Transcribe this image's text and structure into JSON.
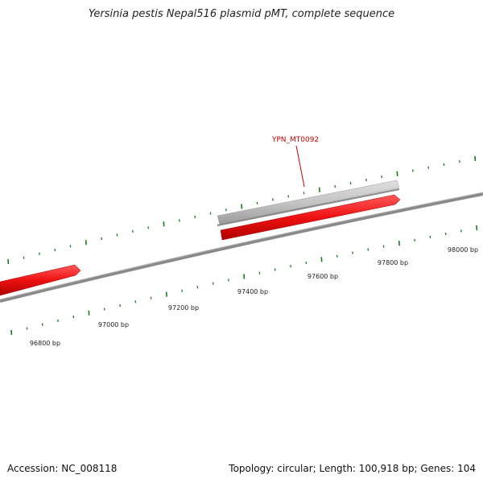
{
  "title": "Yersinia pestis Nepal516 plasmid pMT, complete sequence",
  "footer": {
    "accession": "Accession: NC_008118",
    "info": "Topology: circular; Length: 100,918 bp; Genes: 104"
  },
  "gene_label": "YPN_MT0092",
  "scale_labels": [
    "96800 bp",
    "97000 bp",
    "97200 bp",
    "97400 bp",
    "97600 bp",
    "97800 bp",
    "98000 bp"
  ],
  "colors": {
    "backbone": "#7a7a7a",
    "gene_red": "#ee1111",
    "gene_gray": "#bdbdbd",
    "tick_green": "#1a7a1a",
    "label_red": "#cc0000"
  }
}
